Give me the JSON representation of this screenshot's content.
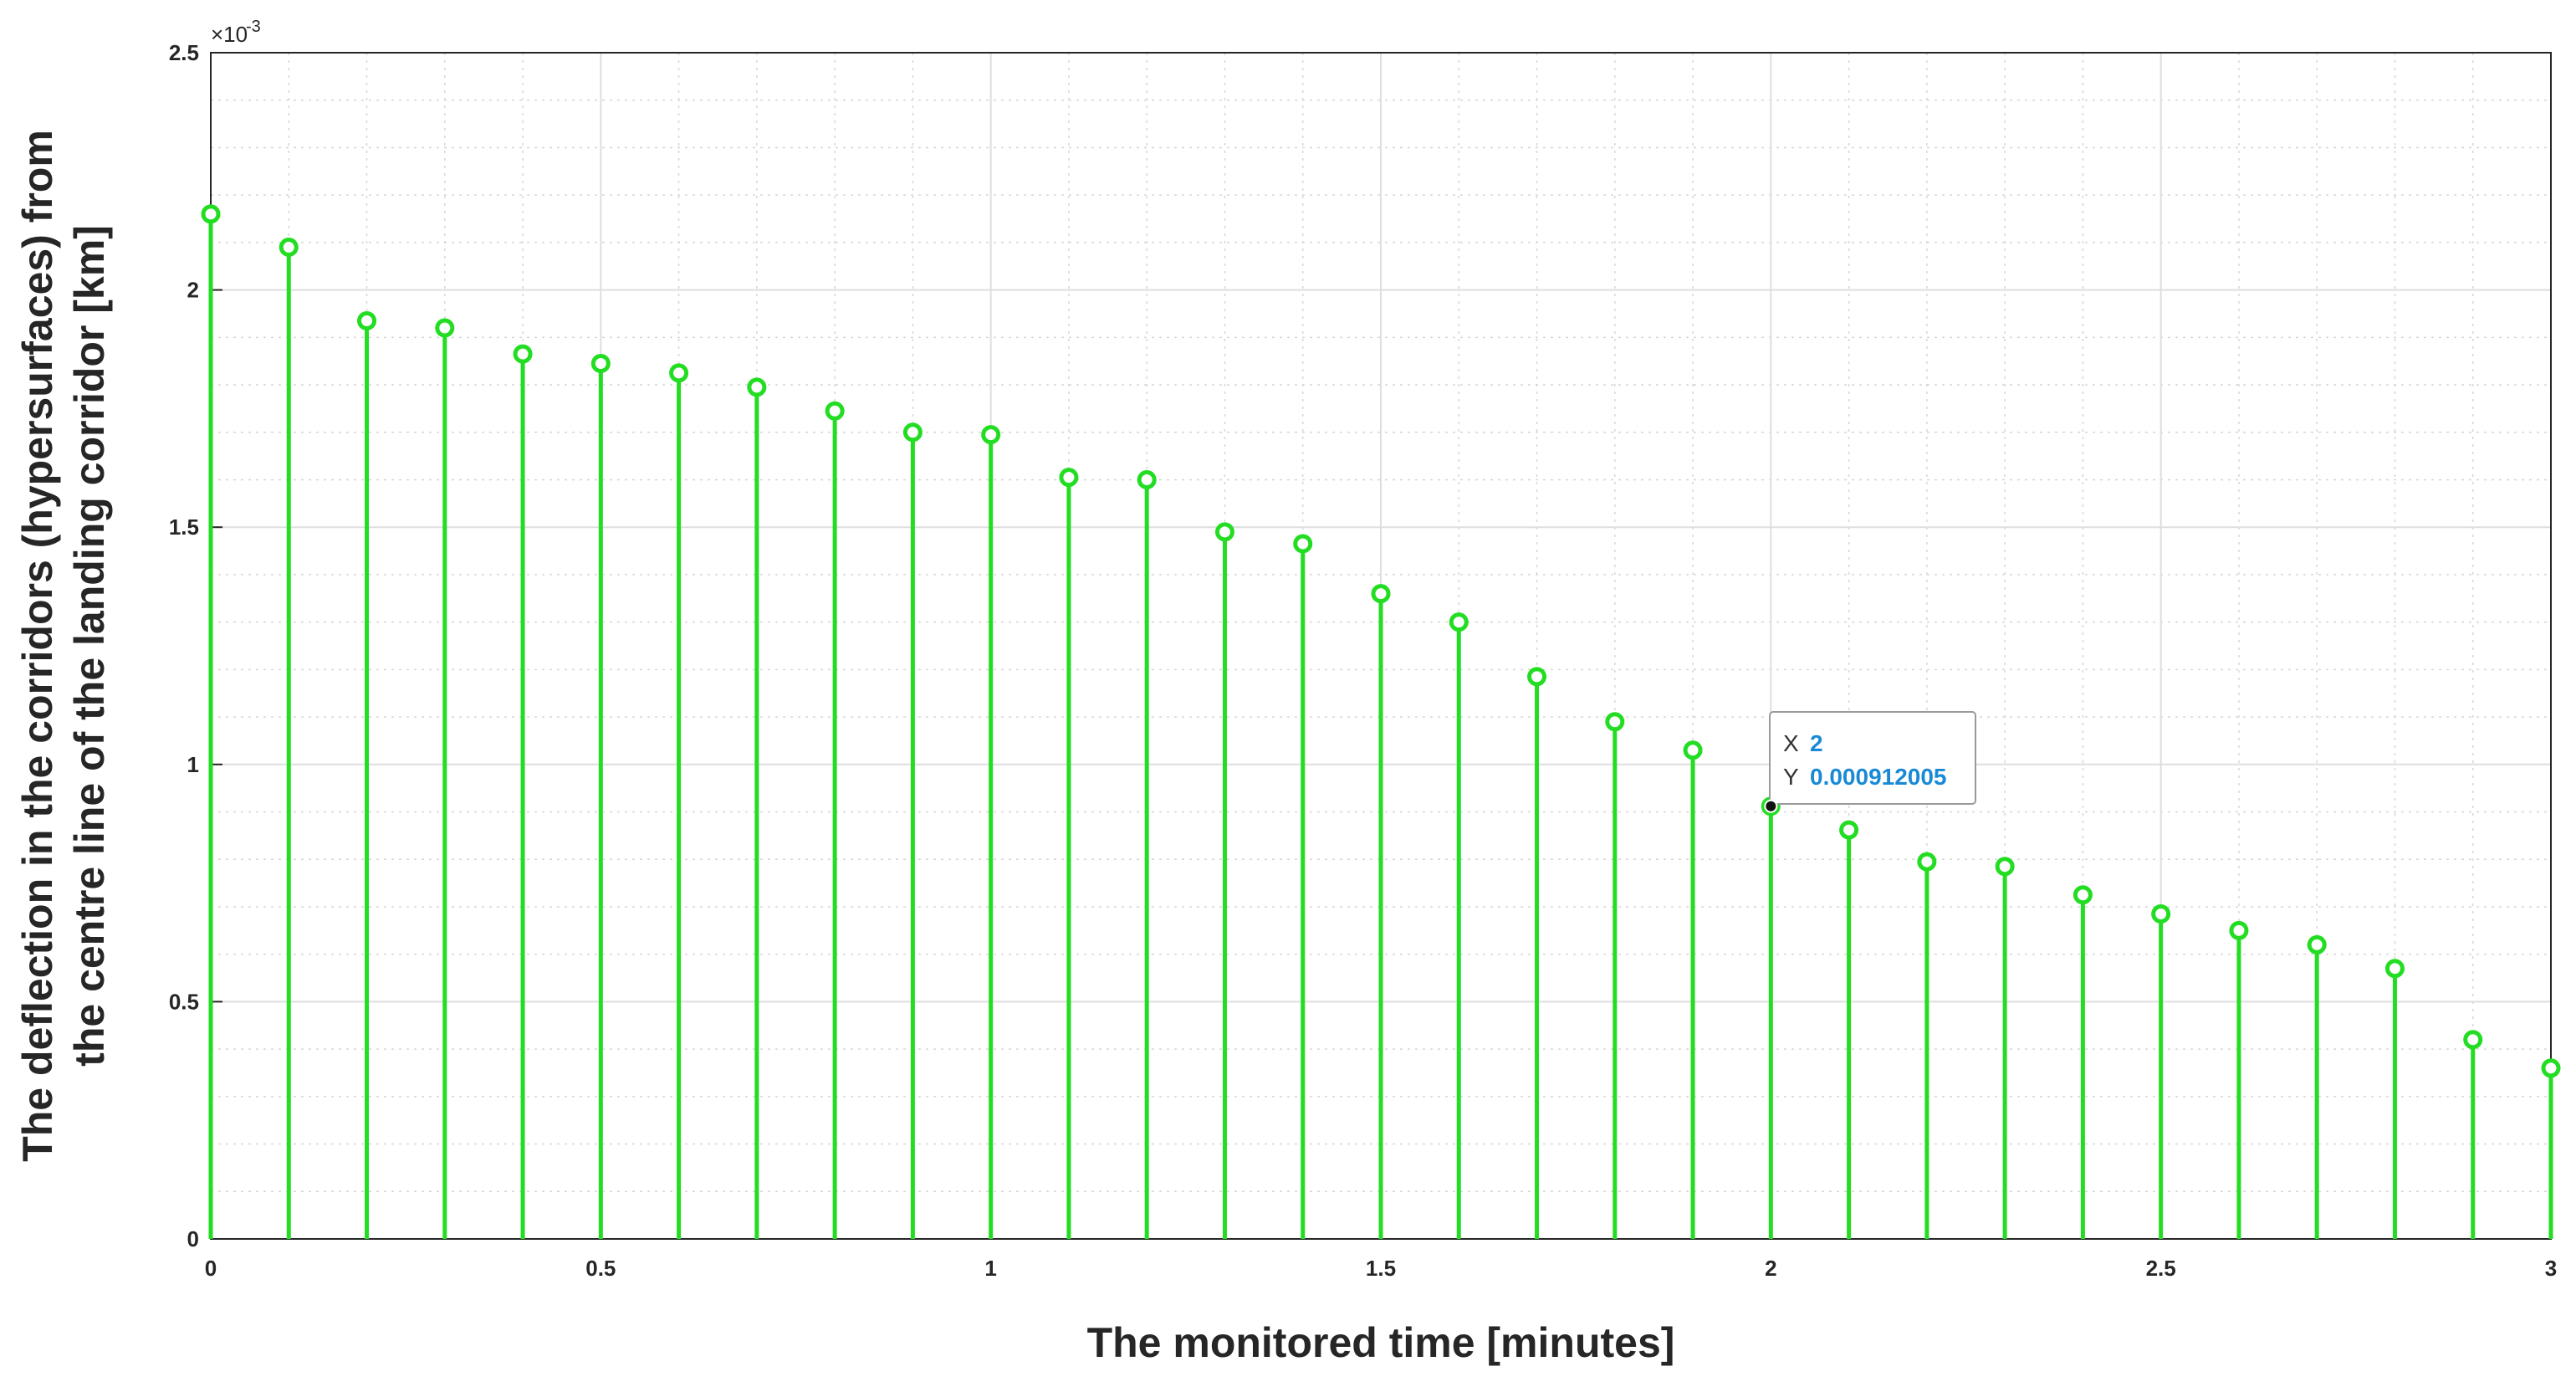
{
  "chart_data": {
    "type": "stem",
    "x": [
      0,
      0.1,
      0.2,
      0.3,
      0.4,
      0.5,
      0.6,
      0.7,
      0.8,
      0.9,
      1.0,
      1.1,
      1.2,
      1.3,
      1.4,
      1.5,
      1.6,
      1.7,
      1.8,
      1.9,
      2.0,
      2.1,
      2.2,
      2.3,
      2.4,
      2.5,
      2.6,
      2.7,
      2.8,
      2.9,
      3.0
    ],
    "values": [
      0.00216,
      0.00209,
      0.001935,
      0.00192,
      0.001865,
      0.001845,
      0.001825,
      0.001795,
      0.001745,
      0.0017,
      0.001695,
      0.001605,
      0.0016,
      0.00149,
      0.001465,
      0.00136,
      0.0013,
      0.001185,
      0.00109,
      0.00103,
      0.000912005,
      0.000862,
      0.000795,
      0.000785,
      0.000725,
      0.000685,
      0.00065,
      0.00062,
      0.00057,
      0.00042,
      0.00036
    ],
    "title": "",
    "xlabel": "The monitored time [minutes]",
    "ylabel_line1": "The deflection in the corridors (hypersurfaces) from",
    "ylabel_line2": "the centre line of the landing corridor [km]",
    "xlim": [
      0,
      3
    ],
    "ylim": [
      0,
      0.0025
    ],
    "x_ticks": [
      "0",
      "0.5",
      "1",
      "1.5",
      "2",
      "2.5",
      "3"
    ],
    "y_ticks": [
      "0",
      "0.5",
      "1",
      "1.5",
      "2",
      "2.5"
    ],
    "y_exponent_base": "×10",
    "y_exponent_power": "-3",
    "grid": true,
    "minor_grid": true,
    "series_color": "#22dd22",
    "datatip": {
      "x_key": "X",
      "x_value": "2",
      "y_key": "Y",
      "y_value": "0.000912005",
      "index": 20
    }
  }
}
